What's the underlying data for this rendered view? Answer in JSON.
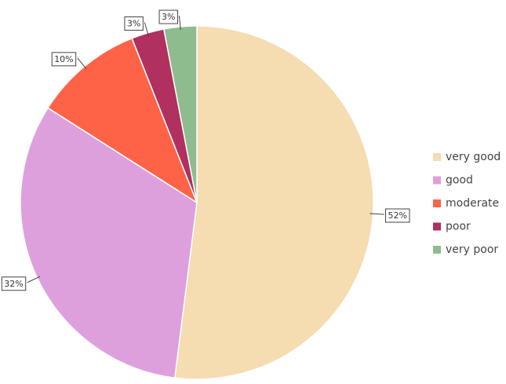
{
  "chart_data": {
    "type": "pie",
    "categories": [
      "very good",
      "good",
      "moderate",
      "poor",
      "very poor"
    ],
    "values": [
      52,
      32,
      10,
      3,
      3
    ],
    "value_labels": [
      "52%",
      "32%",
      "10%",
      "3%",
      "3%"
    ],
    "colors": [
      "#f5dcb1",
      "#dda0dd",
      "#ff6347",
      "#b03060",
      "#8fbc8f"
    ],
    "legend": "right"
  }
}
